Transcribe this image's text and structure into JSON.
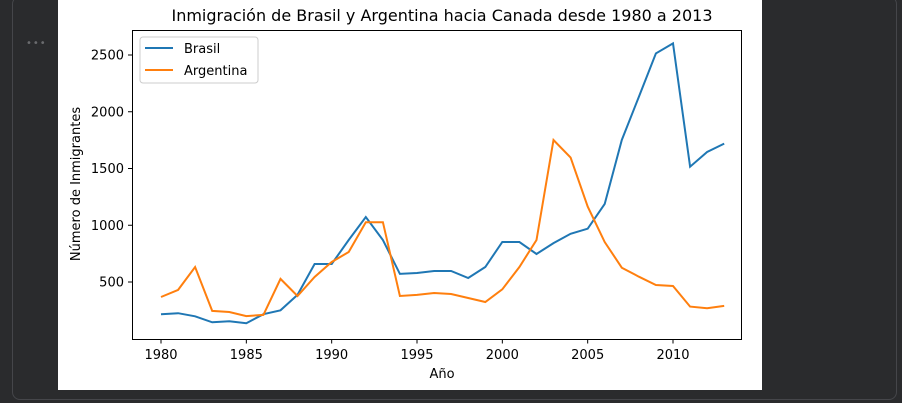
{
  "cell": {
    "more_icon": "ellipsis-icon"
  },
  "chart_data": {
    "type": "line",
    "title": "Inmigración de Brasil y Argentina hacia Canada desde 1980 a 2013",
    "xlabel": "Año",
    "ylabel": "Número de Inmigrantes",
    "x": [
      1980,
      1981,
      1982,
      1983,
      1984,
      1985,
      1986,
      1987,
      1988,
      1989,
      1990,
      1991,
      1992,
      1993,
      1994,
      1995,
      1996,
      1997,
      1998,
      1999,
      2000,
      2001,
      2002,
      2003,
      2004,
      2005,
      2006,
      2007,
      2008,
      2009,
      2010,
      2011,
      2012,
      2013
    ],
    "xticks": [
      "1980",
      "1985",
      "1990",
      "1995",
      "2000",
      "2005",
      "2010"
    ],
    "yticks": [
      "500",
      "1000",
      "1500",
      "2000",
      "2500"
    ],
    "xlim": [
      1978.3,
      2014
    ],
    "ylim": [
      0,
      2720
    ],
    "grid": false,
    "legend": "top-left",
    "series": [
      {
        "name": "Brasil",
        "color": "#1f77b4",
        "values": [
          216,
          225,
          198,
          145,
          154,
          137,
          216,
          251,
          386,
          659,
          659,
          870,
          1073,
          870,
          571,
          579,
          597,
          597,
          535,
          632,
          852,
          852,
          747,
          843,
          925,
          970,
          1187,
          1751,
          2133,
          2514,
          2602,
          1516,
          1645,
          1719
        ]
      },
      {
        "name": "Argentina",
        "color": "#ff7f0e",
        "values": [
          368,
          430,
          632,
          245,
          236,
          200,
          210,
          527,
          377,
          544,
          676,
          764,
          1027,
          1027,
          377,
          386,
          403,
          394,
          359,
          324,
          436,
          632,
          870,
          1751,
          1596,
          1164,
          852,
          626,
          547,
          474,
          465,
          283,
          268,
          289
        ]
      }
    ]
  }
}
